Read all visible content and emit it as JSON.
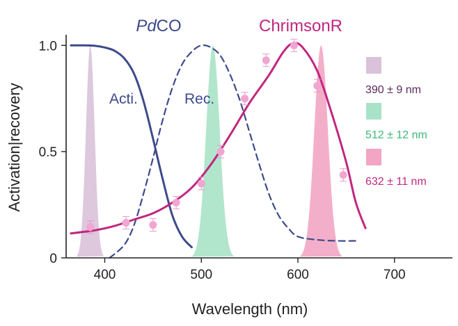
{
  "chart_data": {
    "type": "line",
    "xlabel": "Wavelength (nm)",
    "ylabel": "Activation|recovery",
    "xlim": [
      360,
      760
    ],
    "ylim": [
      0,
      1.05
    ],
    "x_ticks": [
      400,
      500,
      600,
      700
    ],
    "y_ticks": [
      {
        "value": 0,
        "label": "0"
      },
      {
        "value": 0.5,
        "label": "0.5"
      },
      {
        "value": 1.0,
        "label": "1.0"
      }
    ],
    "grid": false,
    "group_titles": {
      "pdco_prefix": "Pd",
      "pdco_suffix": "CO",
      "chrimsonr": "ChrimsonR"
    },
    "annotations": {
      "acti": "Acti.",
      "rec": "Rec."
    },
    "colors": {
      "pdco": "#3d4a8a",
      "chrimsonr": "#c0277f",
      "axis": "#222222",
      "light_390": "#d9c2da",
      "light_512": "#a9e3c7",
      "light_632": "#f2a6c3",
      "points": "#f0a6d0"
    },
    "light_sources": [
      {
        "label": "390 ± 9 nm",
        "peak": 385,
        "sd": 4.5,
        "color": "#d9c2da",
        "text_color": "#5a2a5a"
      },
      {
        "label": "512 ± 12 nm",
        "peak": 512,
        "sd": 7,
        "color": "#a9e3c7",
        "text_color": "#3cb878"
      },
      {
        "label": "632 ± 11 nm",
        "peak": 624,
        "sd": 7,
        "color": "#f2a6c3",
        "text_color": "#c0277f"
      }
    ],
    "series": [
      {
        "key": "pdco_activation",
        "style": "solid",
        "color": "#3d4a8a",
        "points": [
          [
            365,
            1.0
          ],
          [
            380,
            1.0
          ],
          [
            390,
            0.998
          ],
          [
            400,
            0.99
          ],
          [
            410,
            0.975
          ],
          [
            420,
            0.94
          ],
          [
            430,
            0.87
          ],
          [
            440,
            0.74
          ],
          [
            450,
            0.56
          ],
          [
            460,
            0.37
          ],
          [
            470,
            0.2
          ],
          [
            480,
            0.1
          ],
          [
            490,
            0.05
          ]
        ]
      },
      {
        "key": "pdco_recovery",
        "style": "dashed",
        "color": "#3d4a8a",
        "points": [
          [
            405,
            0.0
          ],
          [
            420,
            0.06
          ],
          [
            430,
            0.15
          ],
          [
            440,
            0.3
          ],
          [
            450,
            0.47
          ],
          [
            460,
            0.65
          ],
          [
            470,
            0.8
          ],
          [
            480,
            0.91
          ],
          [
            490,
            0.97
          ],
          [
            500,
            1.0
          ],
          [
            510,
            0.99
          ],
          [
            520,
            0.95
          ],
          [
            530,
            0.86
          ],
          [
            540,
            0.74
          ],
          [
            550,
            0.59
          ],
          [
            560,
            0.44
          ],
          [
            570,
            0.3
          ],
          [
            580,
            0.2
          ],
          [
            590,
            0.14
          ],
          [
            600,
            0.1
          ],
          [
            620,
            0.085
          ],
          [
            640,
            0.08
          ],
          [
            660,
            0.08
          ]
        ]
      },
      {
        "key": "chrimsonr_activation",
        "style": "solid",
        "color": "#c0277f",
        "points": [
          [
            365,
            0.115
          ],
          [
            390,
            0.13
          ],
          [
            410,
            0.15
          ],
          [
            430,
            0.18
          ],
          [
            450,
            0.21
          ],
          [
            470,
            0.26
          ],
          [
            490,
            0.33
          ],
          [
            510,
            0.44
          ],
          [
            530,
            0.58
          ],
          [
            550,
            0.73
          ],
          [
            570,
            0.86
          ],
          [
            585,
            0.97
          ],
          [
            595,
            1.01
          ],
          [
            605,
            0.99
          ],
          [
            620,
            0.88
          ],
          [
            635,
            0.68
          ],
          [
            650,
            0.45
          ],
          [
            660,
            0.26
          ],
          [
            670,
            0.14
          ]
        ]
      },
      {
        "key": "chrimsonr_measured",
        "style": "points",
        "color": "#f0a6d0",
        "points": [
          [
            385,
            0.145
          ],
          [
            422,
            0.165
          ],
          [
            450,
            0.155
          ],
          [
            474,
            0.26
          ],
          [
            500,
            0.35
          ],
          [
            520,
            0.5
          ],
          [
            545,
            0.75
          ],
          [
            567,
            0.93
          ],
          [
            596,
            1.0
          ],
          [
            620,
            0.81
          ],
          [
            647,
            0.39
          ]
        ]
      }
    ]
  }
}
